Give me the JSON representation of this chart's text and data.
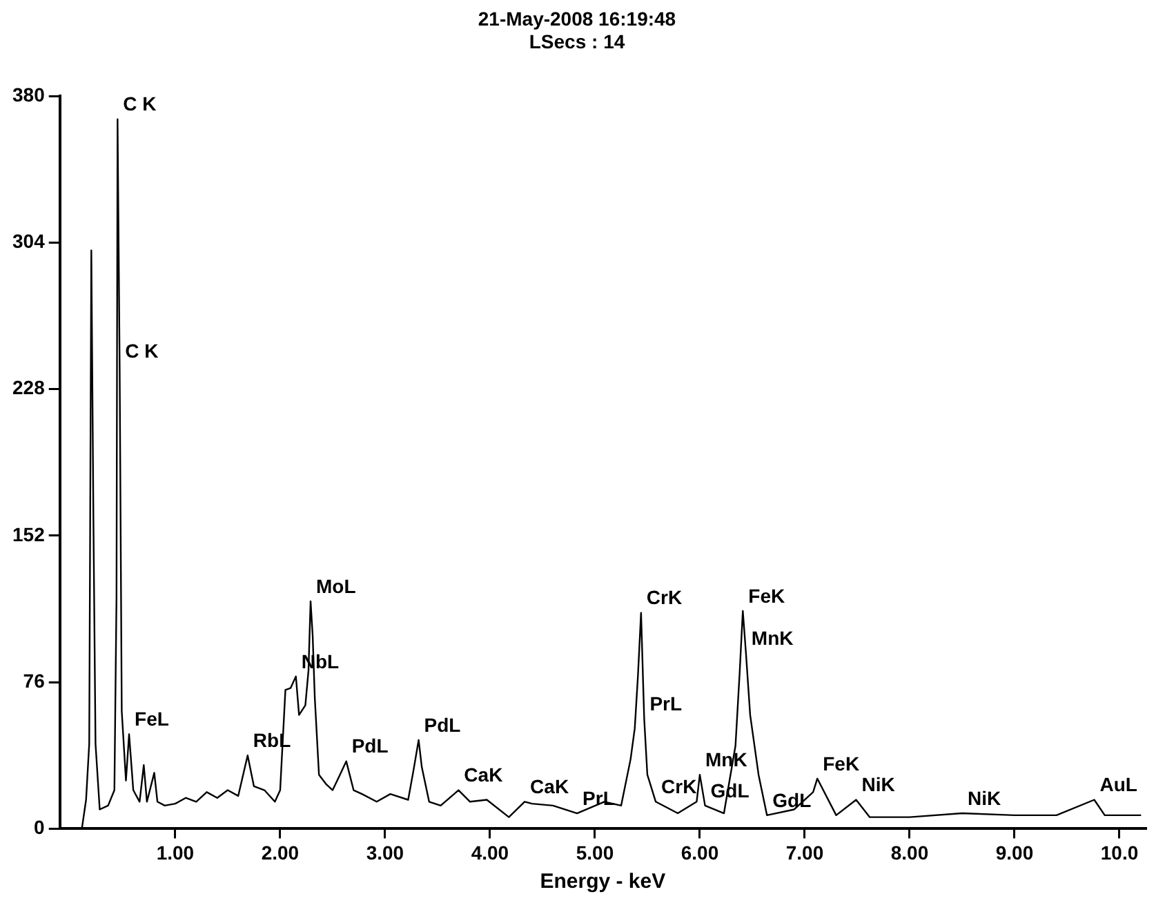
{
  "chart_data": {
    "type": "line",
    "title": "21-May-2008 16:19:48",
    "subtitle": "LSecs : 14",
    "xlabel": "Energy - keV",
    "x": [
      0.11,
      0.15,
      0.18,
      0.2,
      0.22,
      0.24,
      0.28,
      0.36,
      0.42,
      0.44,
      0.45,
      0.47,
      0.49,
      0.53,
      0.56,
      0.6,
      0.66,
      0.7,
      0.73,
      0.8,
      0.83,
      0.9,
      1.0,
      1.1,
      1.2,
      1.3,
      1.4,
      1.5,
      1.6,
      1.69,
      1.75,
      1.85,
      1.95,
      2.0,
      2.05,
      2.1,
      2.15,
      2.18,
      2.24,
      2.27,
      2.29,
      2.31,
      2.33,
      2.37,
      2.44,
      2.5,
      2.57,
      2.63,
      2.7,
      2.78,
      2.92,
      3.05,
      3.22,
      3.27,
      3.32,
      3.35,
      3.42,
      3.53,
      3.7,
      3.81,
      3.97,
      4.18,
      4.33,
      4.4,
      4.6,
      4.83,
      5.09,
      5.25,
      5.34,
      5.38,
      5.41,
      5.44,
      5.47,
      5.5,
      5.58,
      5.79,
      5.97,
      6.0,
      6.05,
      6.23,
      6.34,
      6.38,
      6.41,
      6.44,
      6.48,
      6.56,
      6.64,
      6.9,
      7.08,
      7.12,
      7.3,
      7.49,
      7.62,
      7.8,
      8.0,
      8.5,
      9.0,
      9.4,
      9.76,
      9.86,
      10.2
    ],
    "values": [
      0,
      15,
      44,
      300,
      160,
      44,
      10,
      12,
      20,
      120,
      368,
      240,
      61,
      25,
      49,
      20,
      14,
      33,
      14,
      29,
      14,
      12,
      13,
      16,
      14,
      19,
      16,
      20,
      17,
      38,
      22,
      20,
      14,
      20,
      72,
      73,
      79,
      59,
      64,
      82,
      118,
      100,
      68,
      28,
      23,
      20,
      28,
      35,
      20,
      18,
      14,
      18,
      15,
      30,
      46,
      32,
      14,
      12,
      20,
      14,
      15,
      6,
      14,
      13,
      12,
      8,
      14,
      12,
      36,
      52,
      79,
      112,
      57,
      28,
      14,
      8,
      14,
      28,
      12,
      8,
      43,
      81,
      113,
      91,
      59,
      28,
      7,
      10,
      19,
      26,
      7,
      15,
      6,
      6,
      6,
      8,
      7,
      7,
      15,
      7,
      7
    ],
    "color": "#000000",
    "marker": "none",
    "line_style": "solid",
    "grid": false,
    "legend": false,
    "xlim": [
      -0.1,
      10.25
    ],
    "xticks": [
      {
        "value": 1,
        "label": "1.00"
      },
      {
        "value": 2,
        "label": "2.00"
      },
      {
        "value": 3,
        "label": "3.00"
      },
      {
        "value": 4,
        "label": "4.00"
      },
      {
        "value": 5,
        "label": "5.00"
      },
      {
        "value": 6,
        "label": "6.00"
      },
      {
        "value": 7,
        "label": "7.00"
      },
      {
        "value": 8,
        "label": "8.00"
      },
      {
        "value": 9,
        "label": "9.00"
      },
      {
        "value": 10,
        "label": "10.0"
      }
    ],
    "ylim": [
      0,
      380
    ],
    "yticks": [
      0,
      76,
      152,
      228,
      304,
      380
    ],
    "annotations": [
      {
        "text": "C K",
        "x": 0.47,
        "y": 240
      },
      {
        "text": "C K",
        "x": 0.45,
        "y": 368
      },
      {
        "text": "FeL",
        "x": 0.56,
        "y": 49
      },
      {
        "text": "RbL",
        "x": 1.69,
        "y": 38
      },
      {
        "text": "NbL",
        "x": 2.15,
        "y": 79
      },
      {
        "text": "MoL",
        "x": 2.29,
        "y": 118
      },
      {
        "text": "PdL",
        "x": 2.63,
        "y": 35
      },
      {
        "text": "PdL",
        "x": 3.32,
        "y": 46
      },
      {
        "text": "CaK",
        "x": 3.7,
        "y": 20
      },
      {
        "text": "CaK",
        "x": 4.33,
        "y": 14
      },
      {
        "text": "PrL",
        "x": 4.83,
        "y": 8
      },
      {
        "text": "CrK",
        "x": 5.44,
        "y": 112
      },
      {
        "text": "PrL",
        "x": 5.47,
        "y": 57
      },
      {
        "text": "MnK",
        "x": 6.0,
        "y": 28
      },
      {
        "text": "CrK",
        "x": 5.58,
        "y": 14
      },
      {
        "text": "GdL",
        "x": 6.05,
        "y": 12
      },
      {
        "text": "FeK",
        "x": 6.41,
        "y": 113
      },
      {
        "text": "MnK",
        "x": 6.44,
        "y": 91
      },
      {
        "text": "NiK",
        "x": 7.49,
        "y": 15
      },
      {
        "text": "FeK",
        "x": 7.12,
        "y": 26
      },
      {
        "text": "GdL",
        "x": 6.64,
        "y": 7
      },
      {
        "text": "NiK",
        "x": 8.5,
        "y": 8
      },
      {
        "text": "AuL",
        "x": 9.76,
        "y": 15
      }
    ]
  }
}
